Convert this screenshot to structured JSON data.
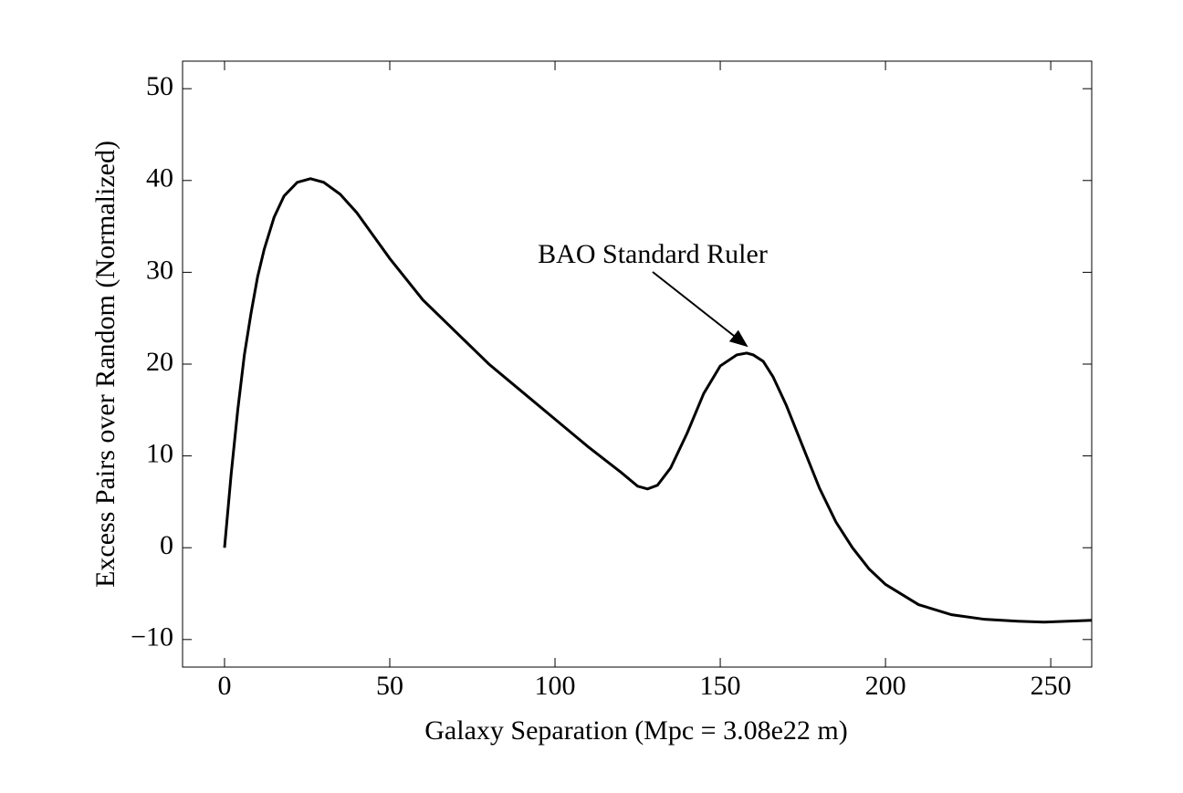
{
  "chart_data": {
    "type": "line",
    "x_label": "Galaxy Separation (Mpc = 3.08e22 m)",
    "y_label": "Excess Pairs over Random (Normalized)",
    "annotation": "BAO Standard Ruler",
    "color": "#000000",
    "x": [
      0,
      2,
      4,
      6,
      8,
      10,
      12,
      15,
      18,
      22,
      26,
      30,
      35,
      40,
      50,
      60,
      70,
      80,
      90,
      100,
      110,
      120,
      125,
      128,
      131,
      135,
      140,
      145,
      150,
      155,
      158,
      160,
      163,
      166,
      170,
      175,
      180,
      185,
      190,
      195,
      200,
      210,
      220,
      230,
      240,
      248,
      262.4
    ],
    "values": [
      0,
      8,
      15,
      21,
      25.5,
      29.5,
      32.5,
      36,
      38.3,
      39.8,
      40.2,
      39.8,
      38.5,
      36.5,
      31.5,
      27,
      23.5,
      20,
      17,
      14,
      11,
      8.2,
      6.7,
      6.4,
      6.8,
      8.7,
      12.5,
      16.8,
      19.8,
      21,
      21.2,
      21,
      20.3,
      18.6,
      15.5,
      11,
      6.5,
      2.8,
      0,
      -2.3,
      -4,
      -6.2,
      -7.3,
      -7.8,
      -8,
      -8.1,
      -7.9
    ],
    "xlim": [
      -12.7,
      262.4
    ],
    "ylim": [
      -13,
      53
    ],
    "xticks": [
      0,
      50,
      100,
      150,
      200,
      250
    ],
    "yticks": [
      {
        "value": -10,
        "label": "−10"
      },
      0,
      10,
      20,
      30,
      40,
      50
    ]
  }
}
